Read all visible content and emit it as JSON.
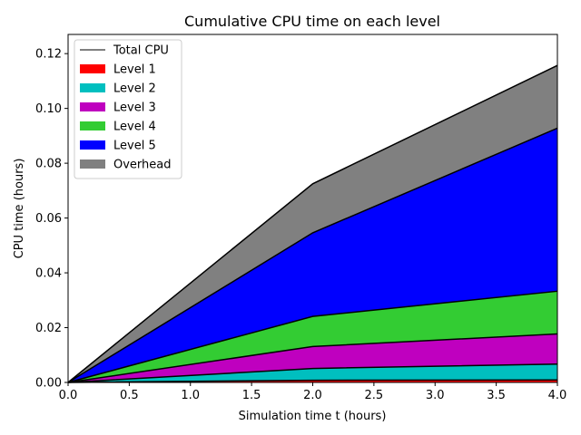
{
  "chart_data": {
    "type": "area",
    "title": "Cumulative CPU time on each level",
    "xlabel": "Simulation time t (hours)",
    "ylabel": "CPU time (hours)",
    "x": [
      0.0,
      2.0,
      4.0
    ],
    "xlim": [
      0.0,
      4.0
    ],
    "ylim": [
      0.0,
      0.127
    ],
    "xticks": [
      "0.0",
      "0.5",
      "1.0",
      "1.5",
      "2.0",
      "2.5",
      "3.0",
      "3.5",
      "4.0"
    ],
    "yticks": [
      "0.00",
      "0.02",
      "0.04",
      "0.06",
      "0.08",
      "0.10",
      "0.12"
    ],
    "stacked": true,
    "series": [
      {
        "name": "Level 1",
        "color": "#ff0000",
        "values": [
          0.0,
          0.0008,
          0.0009
        ]
      },
      {
        "name": "Level 2",
        "color": "#00bfbf",
        "values": [
          0.0,
          0.0043,
          0.0058
        ]
      },
      {
        "name": "Level 3",
        "color": "#bf00bf",
        "values": [
          0.0,
          0.008,
          0.011
        ]
      },
      {
        "name": "Level 4",
        "color": "#33cc33",
        "values": [
          0.0,
          0.011,
          0.0156
        ]
      },
      {
        "name": "Level 5",
        "color": "#0000ff",
        "values": [
          0.0,
          0.0305,
          0.0595
        ]
      },
      {
        "name": "Overhead",
        "color": "#808080",
        "values": [
          0.0,
          0.0179,
          0.0229
        ]
      }
    ],
    "total_line": {
      "name": "Total CPU",
      "color": "#000000",
      "values": [
        0.0,
        0.0725,
        0.1157
      ]
    },
    "legend_position": "upper-left",
    "grid": false
  }
}
